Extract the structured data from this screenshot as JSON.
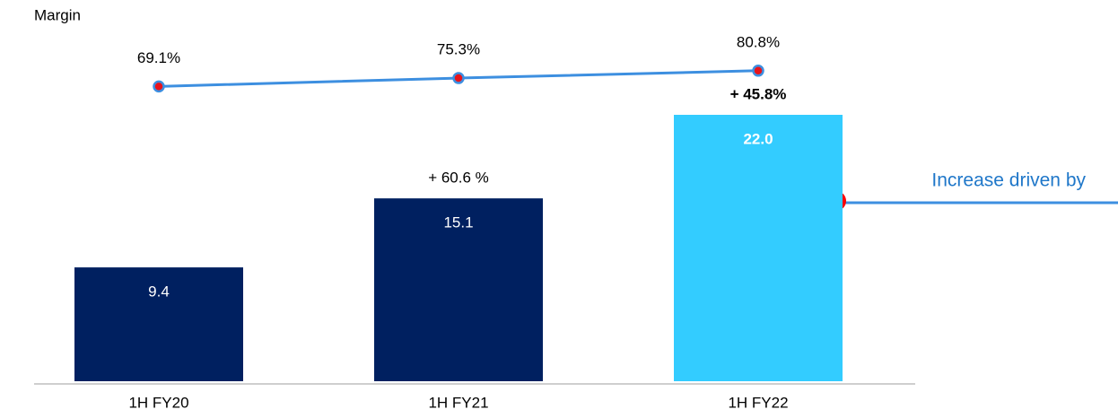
{
  "chart_data": {
    "type": "bar_line",
    "title": "Margin",
    "categories": [
      "1H FY20",
      "1H FY21",
      "1H FY22"
    ],
    "ylim": [
      0,
      30
    ],
    "y2lim": [
      -150,
      120
    ],
    "series": [
      {
        "type": "bar",
        "colors": [
          "#002060",
          "#002060",
          "#33ccff"
        ],
        "values": [
          9.4,
          15.1,
          22.0
        ],
        "value_labels": [
          "9.4",
          "15.1",
          "22.0"
        ]
      },
      {
        "type": "line",
        "axis": "y2",
        "color": "#3d8fe0",
        "marker_color": "#e8141c",
        "values": [
          69.1,
          75.3,
          80.8
        ],
        "value_labels": [
          "69.1%",
          "75.3%",
          "80.8%"
        ]
      }
    ],
    "growth": {
      "values": [
        null,
        60.6,
        45.8
      ],
      "value_labels": [
        null,
        "+ 60.6 %",
        "+ 45.8%"
      ]
    },
    "annotation": "Increase driven by"
  }
}
